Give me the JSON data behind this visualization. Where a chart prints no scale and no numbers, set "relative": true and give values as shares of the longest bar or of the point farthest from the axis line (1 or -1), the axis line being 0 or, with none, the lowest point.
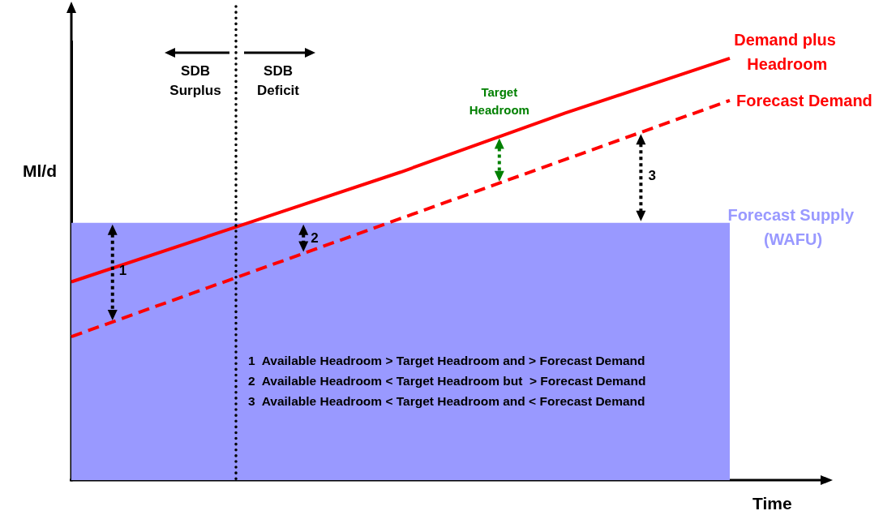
{
  "chart_data": {
    "type": "line",
    "relative": true,
    "categories": [
      null,
      null,
      null,
      null,
      null
    ],
    "xlabel": "Time",
    "ylabel": "Ml/d",
    "series": [
      {
        "name": "Forecast Supply (WAFU)",
        "type": "area",
        "color": "#9999ff",
        "values": [
          0.61,
          0.61,
          0.61,
          0.61,
          0.61
        ]
      },
      {
        "name": "Demand plus Headroom",
        "color": "#ff0000",
        "line_style": "solid",
        "values": [
          0.47,
          0.6,
          0.73,
          0.87,
          1
        ]
      },
      {
        "name": "Forecast Demand",
        "color": "#ff0000",
        "line_style": "dashed",
        "values": [
          0.34,
          0.48,
          0.62,
          0.76,
          0.9
        ]
      }
    ],
    "marker": "none",
    "grid": false,
    "legend": false,
    "annotations": [
      "SDB Surplus",
      "SDB Deficit",
      "Target Headroom",
      "1",
      "2",
      "3",
      "1  Available Headroom > Target Headroom and > Forecast Demand",
      "2  Available Headroom < Target Headroom but  > Forecast Demand",
      "3  Available Headroom < Target Headroom and < Forecast Demand"
    ]
  }
}
